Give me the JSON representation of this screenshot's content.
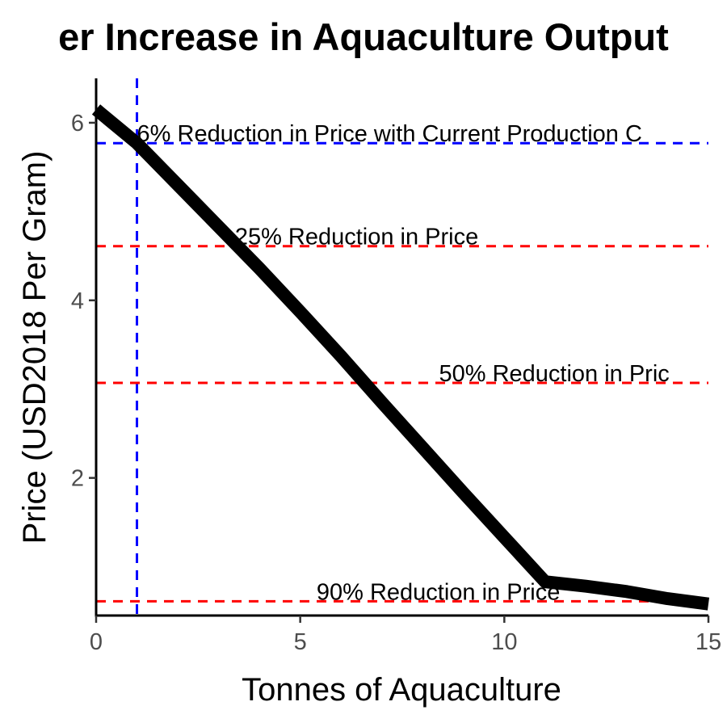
{
  "chart_data": {
    "type": "line",
    "title": "er Increase in Aquaculture Output",
    "xlabel": "Tonnes of Aquaculture",
    "ylabel": "Price (USD2018 Per Gram)",
    "xlim": [
      0,
      15
    ],
    "ylim": [
      0.45,
      6.5
    ],
    "x_ticks": [
      0,
      5,
      10,
      15
    ],
    "y_ticks": [
      2,
      4,
      6
    ],
    "grid": false,
    "series": [
      {
        "color": "#000000",
        "x": [
          0,
          1,
          2,
          3,
          4,
          5,
          6,
          7,
          8,
          9,
          10,
          11,
          12,
          13,
          14,
          15
        ],
        "y": [
          6.15,
          5.77,
          5.3,
          4.83,
          4.36,
          3.87,
          3.37,
          2.85,
          2.34,
          1.83,
          1.33,
          0.83,
          0.78,
          0.72,
          0.64,
          0.58
        ]
      }
    ],
    "reference_lines": [
      {
        "orientation": "horizontal",
        "value": 5.77,
        "color": "#0000ff",
        "style": "dashed"
      },
      {
        "orientation": "vertical",
        "value": 1,
        "color": "#0000ff",
        "style": "dashed"
      },
      {
        "orientation": "horizontal",
        "value": 4.61,
        "color": "#ff0000",
        "style": "dashed"
      },
      {
        "orientation": "horizontal",
        "value": 3.07,
        "color": "#ff0000",
        "style": "dashed"
      },
      {
        "orientation": "horizontal",
        "value": 0.61,
        "color": "#ff0000",
        "style": "dashed"
      }
    ],
    "annotations": [
      {
        "text": "6% Reduction in Price with Current Production C",
        "x": 1.0,
        "y": 5.77
      },
      {
        "text": "25% Reduction in Price",
        "x": 3.4,
        "y": 4.61
      },
      {
        "text": "50% Reduction in Pric",
        "x": 8.4,
        "y": 3.07
      },
      {
        "text": "90% Reduction in Price",
        "x": 5.4,
        "y": 0.61
      }
    ]
  }
}
